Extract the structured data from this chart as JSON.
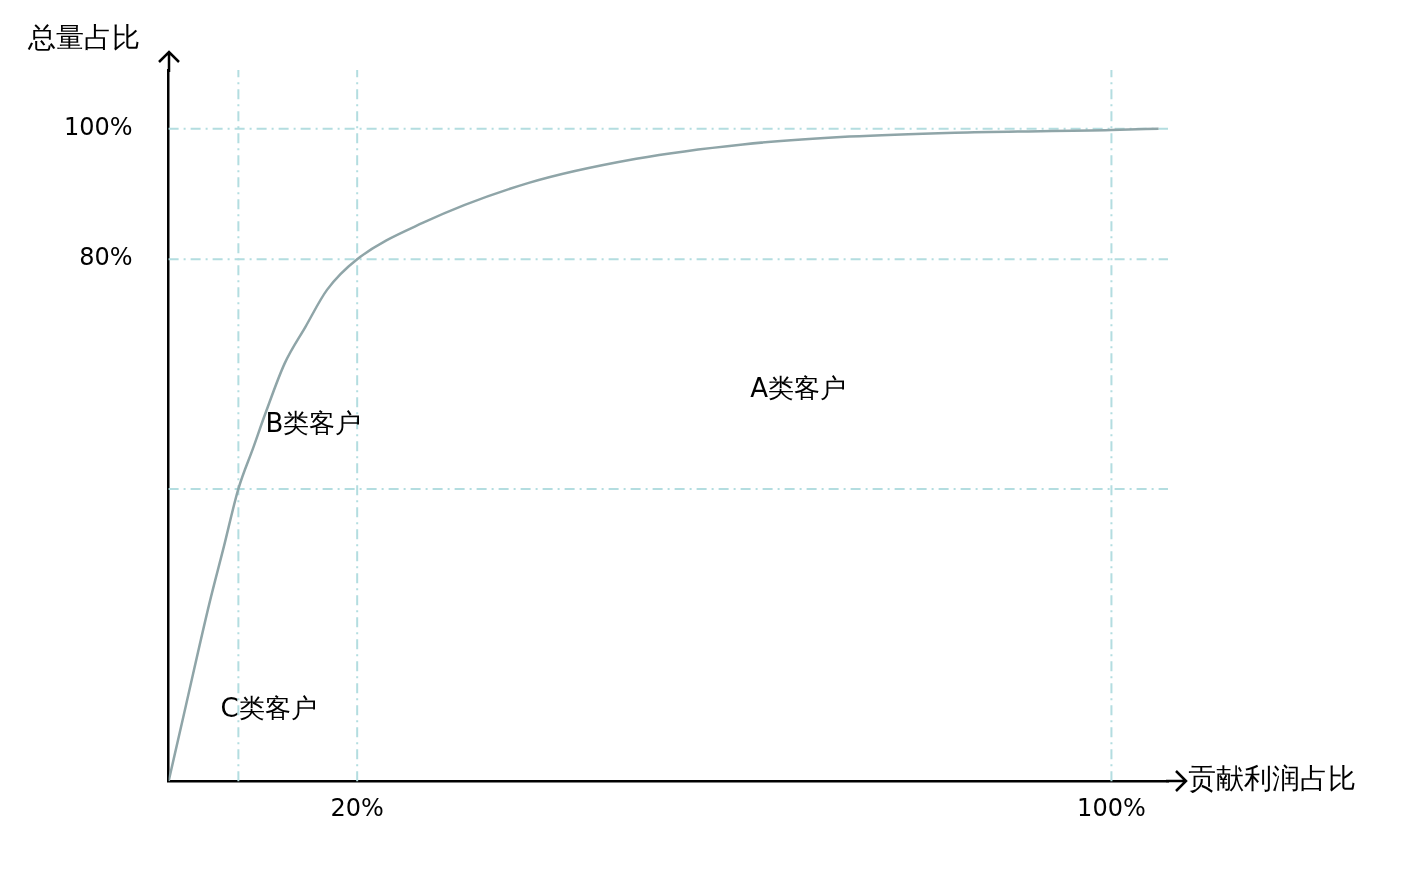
{
  "chart_data": {
    "type": "line",
    "xlabel": "贡献利润占比",
    "ylabel": "总量占比",
    "series": [
      {
        "color": "#8fa5a8",
        "x": [
          0,
          1.6,
          4.3,
          5.8,
          7.4,
          9,
          10.3,
          12.3,
          14.5,
          16.8,
          20,
          27,
          38.2,
          49.6,
          60.9,
          72.2,
          83.4,
          100,
          105
        ],
        "values": [
          0,
          10.1,
          27.1,
          35.6,
          44.8,
          51.2,
          56.5,
          64,
          69.6,
          75.3,
          80,
          85.6,
          91.7,
          95.4,
          97.6,
          98.8,
          99.4,
          99.8,
          100
        ]
      }
    ],
    "xlim": [
      0,
      106
    ],
    "ylim": [
      0,
      109
    ],
    "xticks": [
      {
        "value": 20,
        "label": "20%"
      },
      {
        "value": 100,
        "label": "100%"
      }
    ],
    "yticks": [
      {
        "value": 80,
        "label": "80%"
      },
      {
        "value": 100,
        "label": "100%"
      }
    ],
    "ref_lines": [
      {
        "axis": "y",
        "value": 100,
        "color": "#b3dde0",
        "line_style": "dashdot"
      },
      {
        "axis": "y",
        "value": 80,
        "color": "#b3dde0",
        "line_style": "dashdot"
      },
      {
        "axis": "y",
        "value": 44.8,
        "color": "#b3dde0",
        "line_style": "dashdot"
      },
      {
        "axis": "x",
        "value": 7.4,
        "color": "#b3dde0",
        "line_style": "dashdot"
      },
      {
        "axis": "x",
        "value": 20,
        "color": "#b3dde0",
        "line_style": "dashdot"
      },
      {
        "axis": "x",
        "value": 100,
        "color": "#b3dde0",
        "line_style": "dashdot"
      }
    ],
    "annotations": [
      "A类客户",
      "B类客户",
      "C类客户"
    ],
    "grid": false,
    "legend": false,
    "marker": "none",
    "line_style": "solid"
  }
}
